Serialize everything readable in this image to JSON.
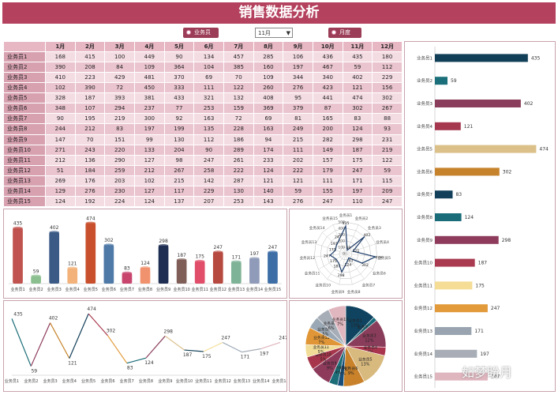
{
  "header": {
    "title": "销售数据分析"
  },
  "controls": {
    "radio1_label": "业务员",
    "month_value": "11月",
    "radio2_label": "月度"
  },
  "months": [
    "1月",
    "2月",
    "3月",
    "4月",
    "5月",
    "6月",
    "7月",
    "8月",
    "9月",
    "10月",
    "11月",
    "12月"
  ],
  "rows": [
    {
      "name": "业务员1",
      "values": [
        168,
        415,
        100,
        449,
        90,
        134,
        457,
        285,
        106,
        436,
        435,
        180
      ]
    },
    {
      "name": "业务员2",
      "values": [
        390,
        208,
        84,
        109,
        364,
        104,
        385,
        160,
        197,
        467,
        59,
        112
      ]
    },
    {
      "name": "业务员3",
      "values": [
        410,
        223,
        429,
        481,
        370,
        69,
        70,
        109,
        344,
        340,
        402,
        229
      ]
    },
    {
      "name": "业务员4",
      "values": [
        102,
        390,
        72,
        450,
        333,
        111,
        122,
        260,
        276,
        423,
        121,
        156
      ]
    },
    {
      "name": "业务员5",
      "values": [
        328,
        187,
        393,
        381,
        433,
        321,
        132,
        408,
        95,
        441,
        474,
        302
      ]
    },
    {
      "name": "业务员6",
      "values": [
        348,
        107,
        294,
        237,
        77,
        253,
        159,
        369,
        379,
        87,
        302,
        267
      ]
    },
    {
      "name": "业务员7",
      "values": [
        90,
        195,
        219,
        300,
        92,
        163,
        72,
        69,
        81,
        165,
        83,
        88
      ]
    },
    {
      "name": "业务员8",
      "values": [
        244,
        212,
        83,
        197,
        199,
        135,
        228,
        163,
        249,
        200,
        124,
        93
      ]
    },
    {
      "name": "业务员9",
      "values": [
        147,
        70,
        151,
        99,
        130,
        112,
        186,
        94,
        215,
        282,
        298,
        231
      ]
    },
    {
      "name": "业务员10",
      "values": [
        271,
        243,
        220,
        133,
        204,
        90,
        289,
        174,
        111,
        149,
        187,
        219
      ]
    },
    {
      "name": "业务员11",
      "values": [
        212,
        136,
        290,
        127,
        98,
        247,
        261,
        233,
        202,
        157,
        175,
        122
      ]
    },
    {
      "name": "业务员12",
      "values": [
        51,
        184,
        259,
        212,
        267,
        258,
        222,
        124,
        222,
        179,
        247,
        59
      ]
    },
    {
      "name": "业务员13",
      "values": [
        269,
        176,
        203,
        102,
        215,
        142,
        287,
        121,
        121,
        111,
        171,
        115
      ]
    },
    {
      "name": "业务员14",
      "values": [
        129,
        276,
        230,
        127,
        117,
        229,
        130,
        140,
        59,
        155,
        197,
        209
      ]
    },
    {
      "name": "业务员15",
      "values": [
        124,
        192,
        224,
        124,
        137,
        207,
        253,
        143,
        276,
        247,
        110,
        247
      ]
    }
  ],
  "chart_data": [
    {
      "type": "bar",
      "title": "",
      "categories": [
        "业务员1",
        "业务员2",
        "业务员3",
        "业务员4",
        "业务员5",
        "业务员6",
        "业务员7",
        "业务员8",
        "业务员9",
        "业务员10",
        "业务员11",
        "业务员12",
        "业务员13",
        "业务员14",
        "业务员15"
      ],
      "values": [
        435,
        59,
        402,
        121,
        474,
        302,
        83,
        124,
        298,
        187,
        175,
        247,
        171,
        197,
        247
      ],
      "colors": [
        "#c0524f",
        "#8cbf8f",
        "#3b5a86",
        "#f2b27a",
        "#c9502d",
        "#4f79a6",
        "#c8456e",
        "#f1926e",
        "#1e2e52",
        "#7f5e57",
        "#e04e69",
        "#b64940",
        "#7fb397",
        "#8f9bb8",
        "#3d6ea6"
      ]
    },
    {
      "type": "radar",
      "categories": [
        "业务员1",
        "业务员2",
        "业务员3",
        "业务员4",
        "业务员5",
        "业务员6",
        "业务员7",
        "业务员8",
        "业务员9",
        "业务员10",
        "业务员11",
        "业务员12",
        "业务员13",
        "业务员14",
        "业务员15"
      ],
      "values": [
        435,
        59,
        402,
        121,
        474,
        302,
        83,
        124,
        298,
        187,
        175,
        247,
        171,
        197,
        247
      ],
      "ticks": [
        0,
        100,
        200,
        300,
        400,
        500
      ]
    },
    {
      "type": "line",
      "categories": [
        "业务员1",
        "业务员2",
        "业务员3",
        "业务员4",
        "业务员5",
        "业务员6",
        "业务员7",
        "业务员8",
        "业务员9",
        "业务员10",
        "业务员11",
        "业务员12",
        "业务员13",
        "业务员14",
        "业务员15"
      ],
      "values": [
        435,
        59,
        402,
        121,
        474,
        302,
        83,
        124,
        298,
        187,
        175,
        247,
        171,
        197,
        247
      ]
    },
    {
      "type": "pie",
      "categories": [
        "业务员1",
        "业务员2",
        "业务员3",
        "业务员4",
        "业务员5",
        "业务员6",
        "业务员7",
        "业务员8",
        "业务员9",
        "业务员10",
        "业务员11",
        "业务员12",
        "业务员13",
        "业务员14",
        "业务员15"
      ],
      "values": [
        435,
        59,
        402,
        121,
        474,
        302,
        83,
        124,
        298,
        187,
        175,
        247,
        171,
        197,
        247
      ],
      "percent_labels": [
        "13%",
        "2%",
        "12%",
        "4%",
        "13%",
        "9%",
        "2%",
        "4%",
        "9%",
        "5%",
        "5%",
        "7%",
        "5%",
        "6%",
        "7%"
      ],
      "colors": [
        "#0f4360",
        "#1a6c7a",
        "#8a3d5a",
        "#a9344e",
        "#d8b97e",
        "#c9822a",
        "#174e7a",
        "#1b6d77",
        "#8d3a5b",
        "#a7364c",
        "#f2dd98",
        "#e09636",
        "#9aa7b4",
        "#a7adb7",
        "#e0b6bf"
      ]
    },
    {
      "type": "bar",
      "orientation": "horizontal",
      "categories": [
        "业务员1",
        "业务员2",
        "业务员3",
        "业务员4",
        "业务员5",
        "业务员6",
        "业务员7",
        "业务员8",
        "业务员9",
        "业务员10",
        "业务员11",
        "业务员12",
        "业务员13",
        "业务员14",
        "业务员15"
      ],
      "values": [
        435,
        59,
        402,
        121,
        474,
        302,
        83,
        124,
        298,
        187,
        175,
        247,
        171,
        197,
        247
      ],
      "colors": [
        "#113f58",
        "#1b6f7a",
        "#8b3e5b",
        "#a5374e",
        "#dcc08a",
        "#c6832b",
        "#123f5a",
        "#1a6c78",
        "#8f3c5c",
        "#a93a50",
        "#f5dd96",
        "#e29a3a",
        "#99a4b0",
        "#a8adb6",
        "#dfb5be"
      ]
    }
  ],
  "watermark": "如梦盼月"
}
